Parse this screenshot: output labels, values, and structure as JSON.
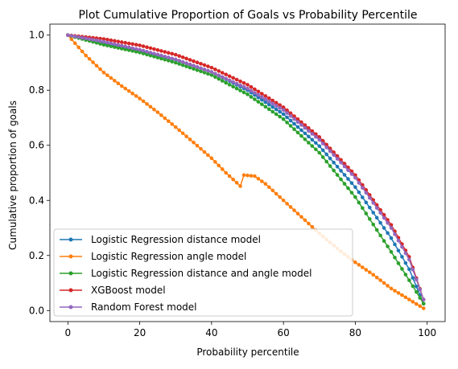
{
  "chart_data": {
    "type": "line",
    "title": "Plot Cumulative Proportion of Goals vs Probability Percentile",
    "xlabel": "Probability percentile",
    "ylabel": "Cumulative proportion of goals",
    "xlim": [
      -5,
      105
    ],
    "ylim": [
      -0.04,
      1.04
    ],
    "x_ticks": [
      {
        "value": 0,
        "label": "0"
      },
      {
        "value": 20,
        "label": "20"
      },
      {
        "value": 40,
        "label": "40"
      },
      {
        "value": 60,
        "label": "60"
      },
      {
        "value": 80,
        "label": "80"
      },
      {
        "value": 100,
        "label": "100"
      }
    ],
    "y_ticks": [
      {
        "value": 0.0,
        "label": "0.0"
      },
      {
        "value": 0.2,
        "label": "0.2"
      },
      {
        "value": 0.4,
        "label": "0.4"
      },
      {
        "value": 0.6,
        "label": "0.6"
      },
      {
        "value": 0.8,
        "label": "0.8"
      },
      {
        "value": 1.0,
        "label": "1.0"
      }
    ],
    "grid": false,
    "legend_position": "lower-left",
    "marker": "circle",
    "series": [
      {
        "name": "Logistic Regression distance model",
        "color": "#1f77b4",
        "x": [
          0,
          10,
          20,
          30,
          40,
          50,
          60,
          70,
          80,
          90,
          95,
          99
        ],
        "values": [
          1.0,
          0.969,
          0.943,
          0.91,
          0.866,
          0.8,
          0.713,
          0.597,
          0.448,
          0.263,
          0.15,
          0.025
        ]
      },
      {
        "name": "Logistic Regression angle model",
        "color": "#ff7f0e",
        "x": [
          0,
          5,
          10,
          15,
          20,
          25,
          30,
          35,
          40,
          44,
          48,
          48.5,
          49,
          52,
          55,
          60,
          65,
          70,
          75,
          80,
          85,
          90,
          95,
          99
        ],
        "values": [
          1.0,
          0.926,
          0.864,
          0.815,
          0.77,
          0.72,
          0.666,
          0.61,
          0.553,
          0.5,
          0.452,
          0.43,
          0.492,
          0.488,
          0.46,
          0.4,
          0.34,
          0.28,
          0.225,
          0.175,
          0.13,
          0.08,
          0.04,
          0.008
        ]
      },
      {
        "name": "Logistic Regression distance and angle model",
        "color": "#2ca02c",
        "x": [
          0,
          10,
          20,
          30,
          40,
          50,
          60,
          70,
          80,
          90,
          95,
          99
        ],
        "values": [
          1.0,
          0.965,
          0.937,
          0.9,
          0.855,
          0.785,
          0.695,
          0.573,
          0.412,
          0.213,
          0.11,
          0.025
        ]
      },
      {
        "name": "XGBoost model",
        "color": "#d62728",
        "x": [
          0,
          10,
          20,
          30,
          40,
          50,
          60,
          70,
          80,
          90,
          95,
          99
        ],
        "values": [
          1.0,
          0.986,
          0.963,
          0.929,
          0.882,
          0.82,
          0.738,
          0.63,
          0.492,
          0.311,
          0.195,
          0.04
        ]
      },
      {
        "name": "Random Forest model",
        "color": "#9467bd",
        "x": [
          0,
          10,
          20,
          30,
          40,
          50,
          60,
          70,
          80,
          90,
          95,
          99
        ],
        "values": [
          1.0,
          0.976,
          0.947,
          0.912,
          0.866,
          0.806,
          0.728,
          0.62,
          0.482,
          0.3,
          0.185,
          0.04
        ]
      }
    ]
  }
}
